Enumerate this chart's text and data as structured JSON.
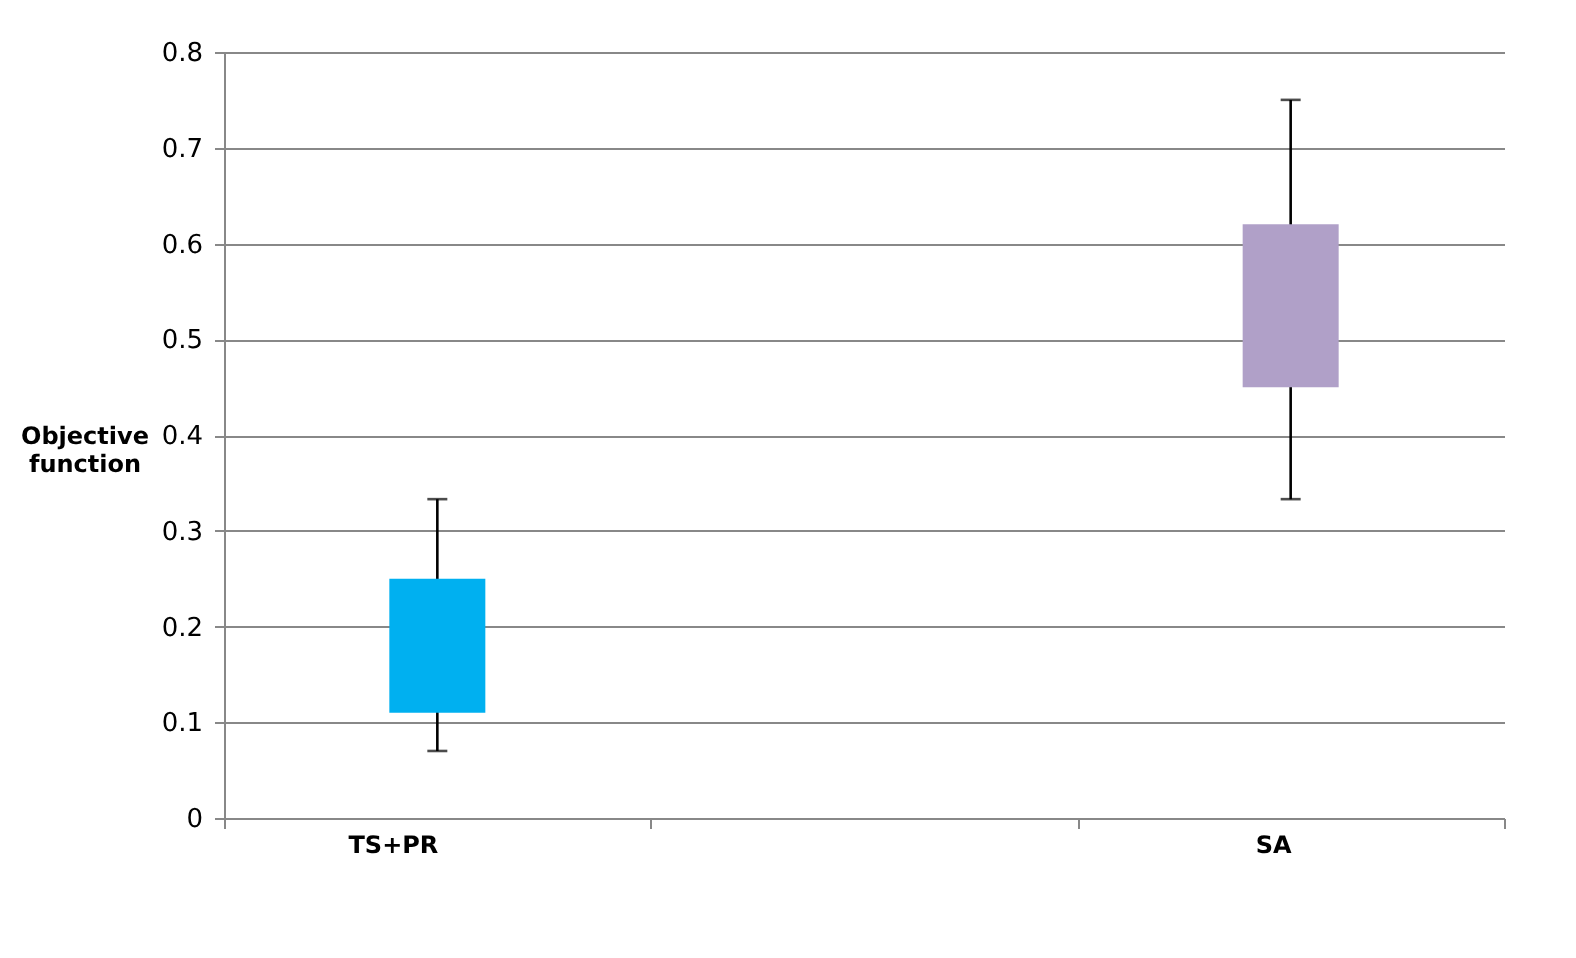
{
  "chart_data": {
    "type": "bar",
    "ylabel": "Objective function",
    "categories": [
      "TS+PR",
      null,
      "SA"
    ],
    "base": [
      0.11,
      null,
      0.45
    ],
    "values": [
      0.14,
      null,
      0.17
    ],
    "colors": [
      "#00b0f0",
      null,
      "#b0a0c8"
    ],
    "errors": [
      [
        0.07,
        0.333
      ],
      null,
      [
        0.333,
        0.75
      ]
    ],
    "ylim": [
      0,
      0.8
    ],
    "yticks": [
      0,
      0.1,
      0.2,
      0.3,
      0.4,
      0.5,
      0.6,
      0.7,
      0.8
    ],
    "grid": "y"
  }
}
